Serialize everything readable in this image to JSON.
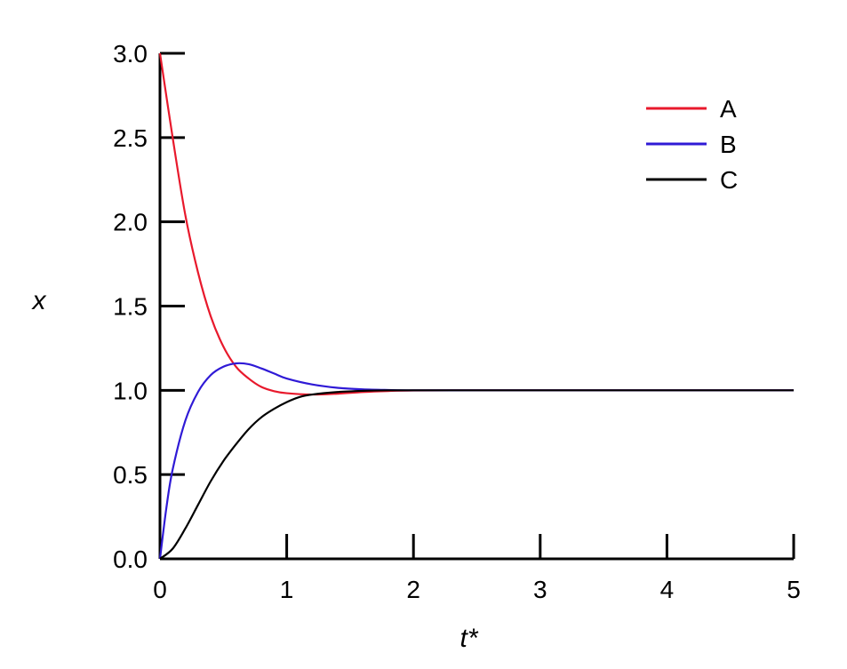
{
  "chart_data": {
    "type": "line",
    "xlabel": "t*",
    "ylabel": "x",
    "xlim": [
      0,
      5
    ],
    "ylim": [
      0,
      3
    ],
    "x_ticks": [
      0,
      1,
      2,
      3,
      4,
      5
    ],
    "x_tick_labels": [
      "0",
      "1",
      "2",
      "3",
      "4",
      "5"
    ],
    "y_ticks": [
      0,
      0.5,
      1.0,
      1.5,
      2.0,
      2.5,
      3.0
    ],
    "y_tick_labels": [
      "0.0",
      "0.5",
      "1.0",
      "1.5",
      "2.0",
      "2.5",
      "3.0"
    ],
    "grid": false,
    "legend_position": "top-right",
    "series": [
      {
        "name": "A",
        "color": "#e8192c",
        "x": [
          0,
          0.1,
          0.2,
          0.3,
          0.4,
          0.5,
          0.6,
          0.7,
          0.8,
          0.9,
          1.0,
          1.2,
          1.4,
          1.6,
          1.8,
          2.0,
          2.5,
          3.0,
          4.0,
          5.0
        ],
        "values": [
          3.0,
          2.5,
          2.04,
          1.7,
          1.44,
          1.26,
          1.14,
          1.07,
          1.02,
          0.995,
          0.983,
          0.975,
          0.98,
          0.99,
          0.996,
          0.999,
          1.0,
          1.0,
          1.0,
          1.0
        ]
      },
      {
        "name": "B",
        "color": "#2f1ad6",
        "x": [
          0,
          0.05,
          0.1,
          0.2,
          0.3,
          0.4,
          0.5,
          0.6,
          0.7,
          0.8,
          0.9,
          1.0,
          1.2,
          1.4,
          1.6,
          1.8,
          2.0,
          2.5,
          3.0,
          4.0,
          5.0
        ],
        "values": [
          0.0,
          0.3,
          0.53,
          0.82,
          0.99,
          1.09,
          1.14,
          1.16,
          1.155,
          1.13,
          1.1,
          1.07,
          1.035,
          1.015,
          1.006,
          1.002,
          1.0,
          1.0,
          1.0,
          1.0,
          1.0
        ]
      },
      {
        "name": "C",
        "color": "#000000",
        "x": [
          0,
          0.1,
          0.2,
          0.3,
          0.4,
          0.5,
          0.6,
          0.7,
          0.8,
          0.9,
          1.0,
          1.1,
          1.2,
          1.4,
          1.6,
          1.8,
          2.0,
          2.5,
          3.0,
          4.0,
          5.0
        ],
        "values": [
          0.0,
          0.06,
          0.18,
          0.32,
          0.46,
          0.58,
          0.68,
          0.77,
          0.84,
          0.89,
          0.93,
          0.96,
          0.975,
          0.99,
          0.997,
          1.0,
          1.0,
          1.0,
          1.0,
          1.0,
          1.0
        ]
      }
    ]
  }
}
